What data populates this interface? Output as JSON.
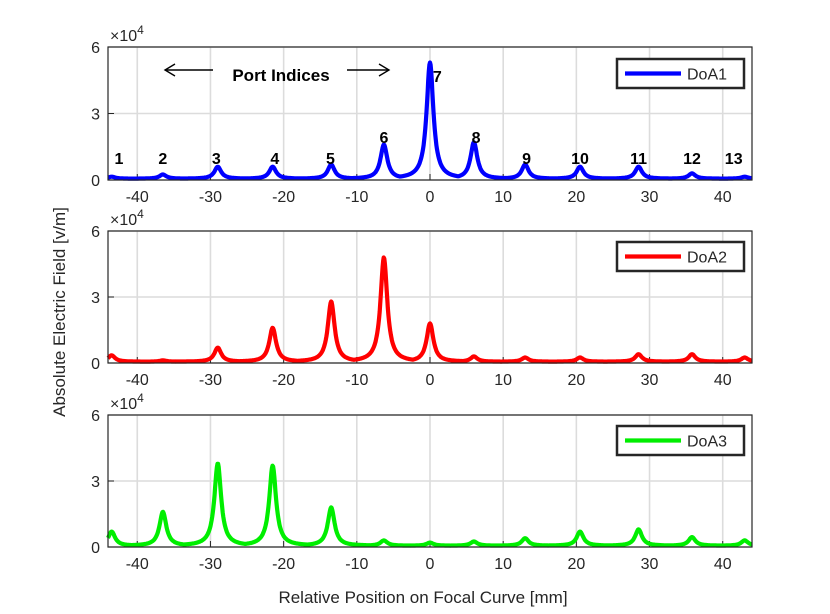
{
  "figure": {
    "ylabel": "Absolute Electric Field [v/m]",
    "xlabel": "Relative Position on Focal Curve [mm]",
    "exponent_label": "×10",
    "exponent_power": "4"
  },
  "annotation": {
    "text": "Port Indices",
    "arrows": "left-right"
  },
  "port_labels": [
    {
      "label": "1",
      "x": -42.5
    },
    {
      "label": "2",
      "x": -36.5
    },
    {
      "label": "3",
      "x": -29.2
    },
    {
      "label": "4",
      "x": -21.2
    },
    {
      "label": "5",
      "x": -13.6
    },
    {
      "label": "6",
      "x": -6.3
    },
    {
      "label": "7",
      "x": 1.0
    },
    {
      "label": "8",
      "x": 6.3
    },
    {
      "label": "9",
      "x": 13.2
    },
    {
      "label": "10",
      "x": 20.5
    },
    {
      "label": "11",
      "x": 28.5
    },
    {
      "label": "12",
      "x": 35.8
    },
    {
      "label": "13",
      "x": 41.5
    }
  ],
  "chart_data": [
    {
      "type": "line",
      "xlim": [
        -44,
        44
      ],
      "ylim": [
        0,
        6
      ],
      "y_unit_multiplier": 10000,
      "xticks": [
        -40,
        -30,
        -20,
        -10,
        0,
        10,
        20,
        30,
        40
      ],
      "yticks": [
        0,
        3,
        6
      ],
      "grid": true,
      "legend_position": "top-right",
      "series": [
        {
          "name": "DoA1",
          "color": "#0000ff",
          "peaks": [
            {
              "x": -43.5,
              "y": 0.15
            },
            {
              "x": -36.5,
              "y": 0.25
            },
            {
              "x": -29.0,
              "y": 0.6
            },
            {
              "x": -21.5,
              "y": 0.6
            },
            {
              "x": -13.5,
              "y": 0.7
            },
            {
              "x": -6.3,
              "y": 1.6
            },
            {
              "x": 0.0,
              "y": 5.3
            },
            {
              "x": 6.0,
              "y": 1.7
            },
            {
              "x": 13.0,
              "y": 0.7
            },
            {
              "x": 20.5,
              "y": 0.6
            },
            {
              "x": 28.5,
              "y": 0.6
            },
            {
              "x": 35.8,
              "y": 0.3
            },
            {
              "x": 43.0,
              "y": 0.15
            }
          ]
        }
      ]
    },
    {
      "type": "line",
      "xlim": [
        -44,
        44
      ],
      "ylim": [
        0,
        6
      ],
      "y_unit_multiplier": 10000,
      "xticks": [
        -40,
        -30,
        -20,
        -10,
        0,
        10,
        20,
        30,
        40
      ],
      "yticks": [
        0,
        3,
        6
      ],
      "grid": true,
      "legend_position": "top-right",
      "series": [
        {
          "name": "DoA2",
          "color": "#ff0000",
          "peaks": [
            {
              "x": -43.5,
              "y": 0.35
            },
            {
              "x": -36.5,
              "y": 0.12
            },
            {
              "x": -29.0,
              "y": 0.7
            },
            {
              "x": -21.5,
              "y": 1.6
            },
            {
              "x": -13.5,
              "y": 2.8
            },
            {
              "x": -6.3,
              "y": 4.8
            },
            {
              "x": 0.0,
              "y": 1.8
            },
            {
              "x": 6.0,
              "y": 0.3
            },
            {
              "x": 13.0,
              "y": 0.25
            },
            {
              "x": 20.5,
              "y": 0.25
            },
            {
              "x": 28.5,
              "y": 0.4
            },
            {
              "x": 35.8,
              "y": 0.4
            },
            {
              "x": 43.0,
              "y": 0.25
            }
          ]
        }
      ]
    },
    {
      "type": "line",
      "xlim": [
        -44,
        44
      ],
      "ylim": [
        0,
        6
      ],
      "y_unit_multiplier": 10000,
      "xticks": [
        -40,
        -30,
        -20,
        -10,
        0,
        10,
        20,
        30,
        40
      ],
      "yticks": [
        0,
        3,
        6
      ],
      "grid": true,
      "legend_position": "top-right",
      "series": [
        {
          "name": "DoA3",
          "color": "#00ee00",
          "peaks": [
            {
              "x": -43.5,
              "y": 0.7
            },
            {
              "x": -36.5,
              "y": 1.6
            },
            {
              "x": -29.0,
              "y": 3.8
            },
            {
              "x": -21.5,
              "y": 3.7
            },
            {
              "x": -13.5,
              "y": 1.8
            },
            {
              "x": -6.3,
              "y": 0.3
            },
            {
              "x": 0.0,
              "y": 0.2
            },
            {
              "x": 6.0,
              "y": 0.25
            },
            {
              "x": 13.0,
              "y": 0.4
            },
            {
              "x": 20.5,
              "y": 0.7
            },
            {
              "x": 28.5,
              "y": 0.8
            },
            {
              "x": 35.8,
              "y": 0.45
            },
            {
              "x": 43.0,
              "y": 0.3
            }
          ]
        }
      ]
    }
  ]
}
